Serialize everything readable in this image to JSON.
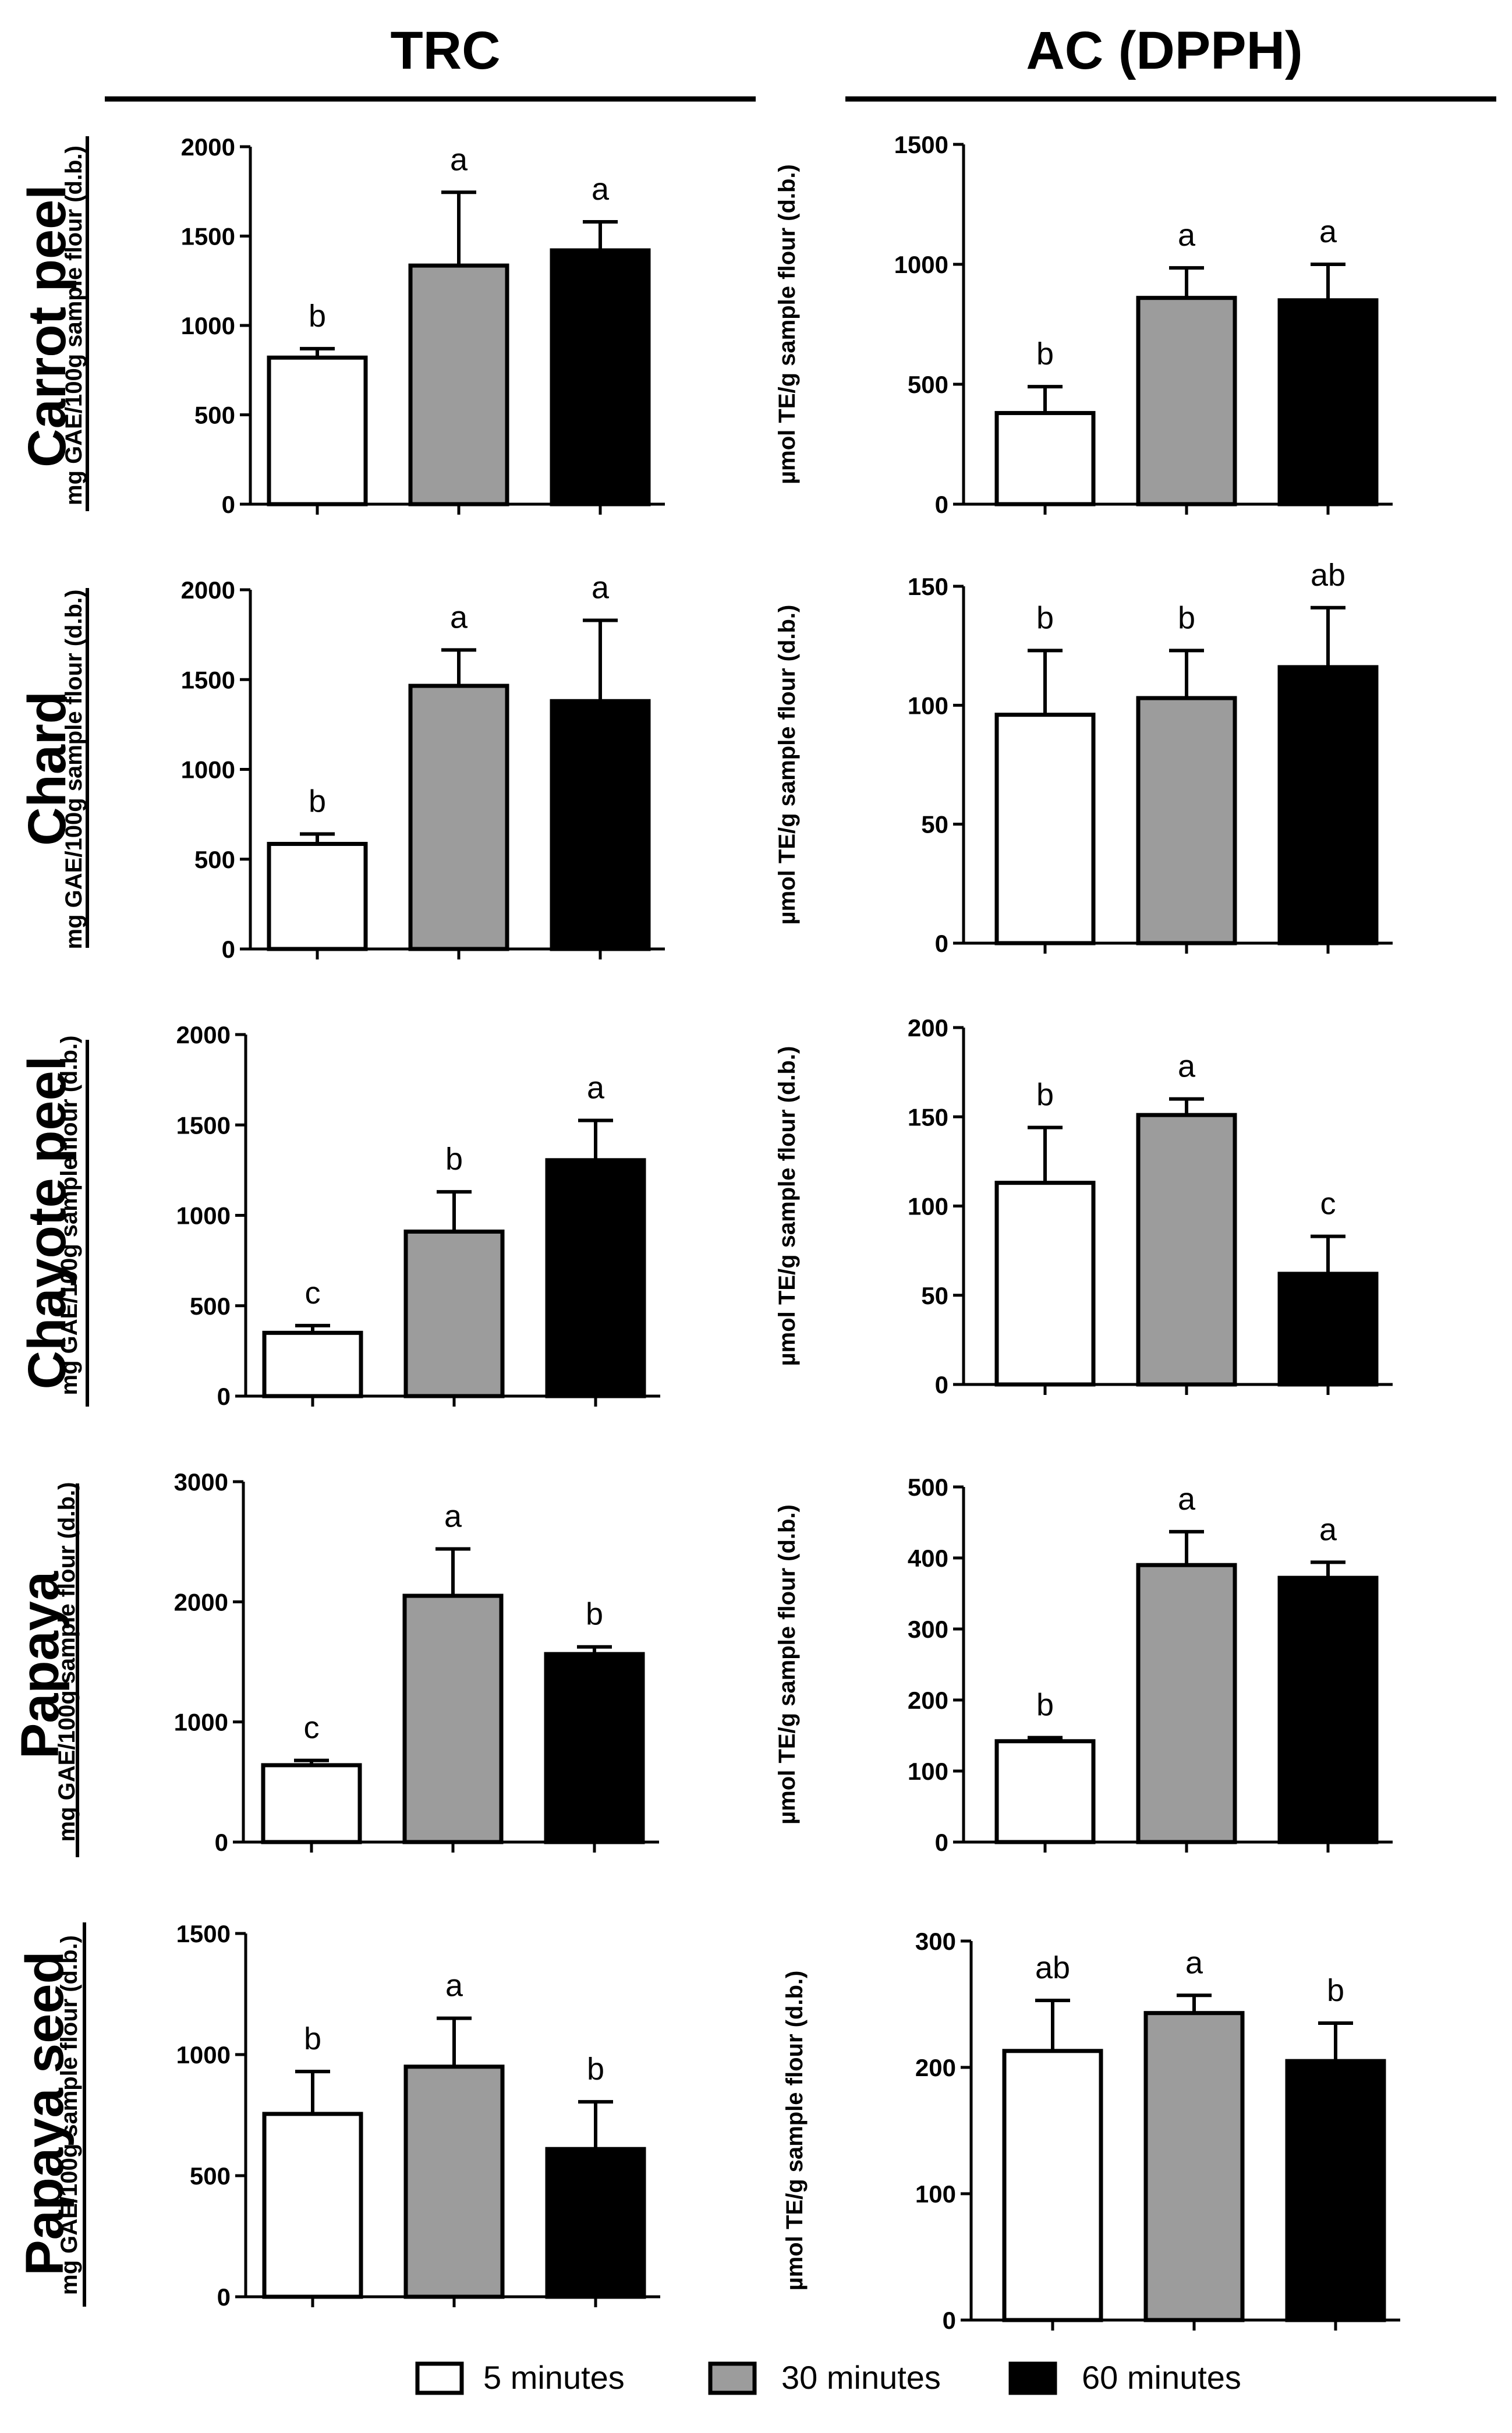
{
  "figure": {
    "column_headers": [
      "TRC",
      "AC (DPPH)"
    ],
    "row_labels": [
      "Carrot peel",
      "Chard",
      "Chayote peel",
      "Papaya",
      "Papaya seed"
    ],
    "legend": [
      {
        "label": "5 minutes",
        "color": "#ffffff"
      },
      {
        "label": "30 minutes",
        "color": "#9c9c9c"
      },
      {
        "label": "60 minutes",
        "color": "#000000"
      }
    ]
  },
  "chart_data": [
    {
      "type": "bar",
      "panel": "Carrot peel - TRC",
      "categories": [
        "5 minutes",
        "30 minutes",
        "60 minutes"
      ],
      "values": [
        820,
        1335,
        1420
      ],
      "errors": [
        50,
        410,
        160
      ],
      "significance": [
        "b",
        "a",
        "a"
      ],
      "ylabel": "mg GAE/100g sample flour (d.b.)",
      "ylim": [
        0,
        2000
      ],
      "yticks": [
        "0",
        "500",
        "1000",
        "1500",
        "2000"
      ]
    },
    {
      "type": "bar",
      "panel": "Carrot peel - AC (DPPH)",
      "categories": [
        "5 minutes",
        "30 minutes",
        "60 minutes"
      ],
      "values": [
        380,
        860,
        850
      ],
      "errors": [
        110,
        125,
        150
      ],
      "significance": [
        "b",
        "a",
        "a"
      ],
      "ylabel": "µmol TE/g sample flour (d.b.)",
      "ylim": [
        0,
        1500
      ],
      "yticks": [
        "0",
        "500",
        "1000",
        "1500"
      ]
    },
    {
      "type": "bar",
      "panel": "Chard - TRC",
      "categories": [
        "5 minutes",
        "30 minutes",
        "60 minutes"
      ],
      "values": [
        585,
        1465,
        1380
      ],
      "errors": [
        55,
        200,
        450
      ],
      "significance": [
        "b",
        "a",
        "a"
      ],
      "ylabel": "mg GAE/100g sample flour (d.b.)",
      "ylim": [
        0,
        2000
      ],
      "yticks": [
        "0",
        "500",
        "1000",
        "1500",
        "2000"
      ]
    },
    {
      "type": "bar",
      "panel": "Chard - AC (DPPH)",
      "categories": [
        "5 minutes",
        "30 minutes",
        "60 minutes"
      ],
      "values": [
        96,
        103,
        116
      ],
      "errors": [
        27,
        20,
        25
      ],
      "significance": [
        "b",
        "b",
        "ab"
      ],
      "ylabel": "µmol TE/g sample flour (d.b.)",
      "ylim": [
        0,
        150
      ],
      "yticks": [
        "0",
        "50",
        "100",
        "150"
      ]
    },
    {
      "type": "bar",
      "panel": "Chayote peel - TRC",
      "categories": [
        "5 minutes",
        "30 minutes",
        "60 minutes"
      ],
      "values": [
        350,
        910,
        1305
      ],
      "errors": [
        40,
        220,
        220
      ],
      "significance": [
        "c",
        "b",
        "a"
      ],
      "ylabel": "mg GAE/100g sample flour (d.b.)",
      "ylim": [
        0,
        2000
      ],
      "yticks": [
        "0",
        "500",
        "1000",
        "1500",
        "2000"
      ]
    },
    {
      "type": "bar",
      "panel": "Chayote peel - AC (DPPH)",
      "categories": [
        "5 minutes",
        "30 minutes",
        "60 minutes"
      ],
      "values": [
        113,
        151,
        62
      ],
      "errors": [
        31,
        9,
        21
      ],
      "significance": [
        "b",
        "a",
        "c"
      ],
      "ylabel": "µmol TE/g sample flour (d.b.)",
      "ylim": [
        0,
        200
      ],
      "yticks": [
        "0",
        "50",
        "100",
        "150",
        "200"
      ]
    },
    {
      "type": "bar",
      "panel": "Papaya - TRC",
      "categories": [
        "5 minutes",
        "30 minutes",
        "60 minutes"
      ],
      "values": [
        640,
        2050,
        1565
      ],
      "errors": [
        40,
        390,
        60
      ],
      "significance": [
        "c",
        "a",
        "b"
      ],
      "ylabel": "mg GAE/100g sample flour (d.b.)",
      "ylim": [
        0,
        3000
      ],
      "yticks": [
        "0",
        "1000",
        "2000",
        "3000"
      ]
    },
    {
      "type": "bar",
      "panel": "Papaya - AC (DPPH)",
      "categories": [
        "5 minutes",
        "30 minutes",
        "60 minutes"
      ],
      "values": [
        142,
        390,
        372
      ],
      "errors": [
        5,
        47,
        22
      ],
      "significance": [
        "b",
        "a",
        "a"
      ],
      "ylabel": "µmol TE/g sample flour (d.b.)",
      "ylim": [
        0,
        500
      ],
      "yticks": [
        "0",
        "100",
        "200",
        "300",
        "400",
        "500"
      ]
    },
    {
      "type": "bar",
      "panel": "Papaya seed - TRC",
      "categories": [
        "5 minutes",
        "30 minutes",
        "60 minutes"
      ],
      "values": [
        755,
        950,
        610
      ],
      "errors": [
        175,
        200,
        195
      ],
      "significance": [
        "b",
        "a",
        "b"
      ],
      "ylabel": "mg GAE/100g sample flour (d.b.)",
      "ylim": [
        0,
        1500
      ],
      "yticks": [
        "0",
        "500",
        "1000",
        "1500"
      ]
    },
    {
      "type": "bar",
      "panel": "Papaya seed - AC (DPPH)",
      "categories": [
        "5 minutes",
        "30 minutes",
        "60 minutes"
      ],
      "values": [
        213,
        243,
        205
      ],
      "errors": [
        40,
        14,
        30
      ],
      "significance": [
        "ab",
        "a",
        "b"
      ],
      "ylabel": "µmol TE/g sample flour (d.b.)",
      "ylim": [
        0,
        300
      ],
      "yticks": [
        "0",
        "100",
        "200",
        "300"
      ]
    }
  ]
}
